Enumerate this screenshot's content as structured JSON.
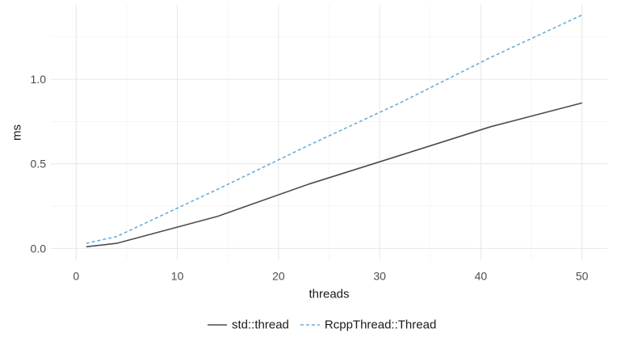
{
  "chart_data": {
    "type": "line",
    "title": "",
    "xlabel": "threads",
    "ylabel": "ms",
    "xlim": [
      -2.5,
      52.5
    ],
    "ylim": [
      -0.07,
      1.44
    ],
    "x_ticks": [
      0,
      10,
      20,
      30,
      40,
      50
    ],
    "y_ticks": [
      0.0,
      0.5,
      1.0
    ],
    "x_tick_labels": [
      "0",
      "10",
      "20",
      "30",
      "40",
      "50"
    ],
    "y_tick_labels": [
      "0.0",
      "0.5",
      "1.0"
    ],
    "grid": true,
    "legend_position": "bottom",
    "series": [
      {
        "name": "std::thread",
        "color": "#4d4d4d",
        "dash": "solid",
        "x": [
          1,
          4,
          14,
          23,
          32,
          41,
          50
        ],
        "y": [
          0.01,
          0.03,
          0.19,
          0.38,
          0.55,
          0.72,
          0.86
        ]
      },
      {
        "name": "RcppThread::Thread",
        "color": "#6baed6",
        "dash": "dashed",
        "x": [
          1,
          4,
          14,
          23,
          32,
          41,
          50
        ],
        "y": [
          0.03,
          0.07,
          0.35,
          0.61,
          0.86,
          1.13,
          1.38
        ]
      }
    ]
  }
}
